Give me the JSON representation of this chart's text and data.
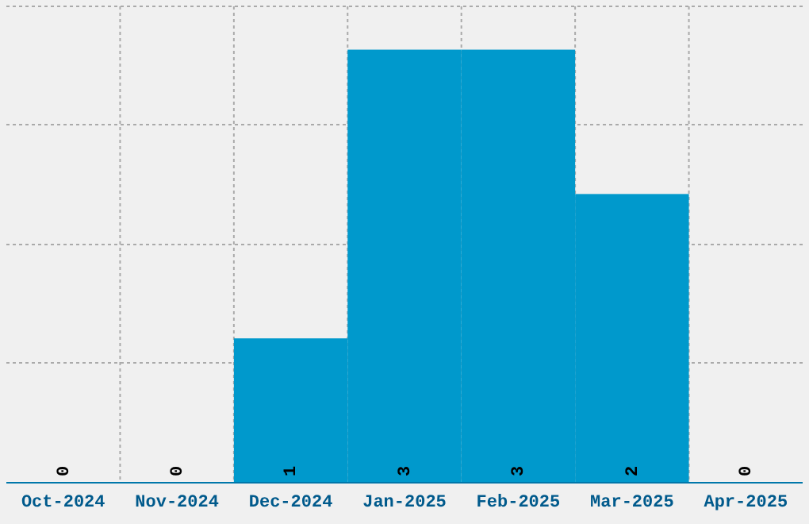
{
  "chart_data": {
    "type": "bar",
    "categories": [
      "Oct-2024",
      "Nov-2024",
      "Dec-2024",
      "Jan-2025",
      "Feb-2025",
      "Mar-2025",
      "Apr-2025"
    ],
    "values": [
      0,
      0,
      1,
      3,
      3,
      2,
      0
    ],
    "color": "#0099cc",
    "data_labels": true,
    "grid": true,
    "tick_labels": "x",
    "ylim": [
      0,
      3.3
    ],
    "yticks": [
      {
        "value": 0,
        "label": null
      },
      {
        "value": 0.83,
        "label": null
      },
      {
        "value": 1.65,
        "label": null
      },
      {
        "value": 2.48,
        "label": null
      },
      {
        "value": 3.3,
        "label": null
      }
    ]
  }
}
